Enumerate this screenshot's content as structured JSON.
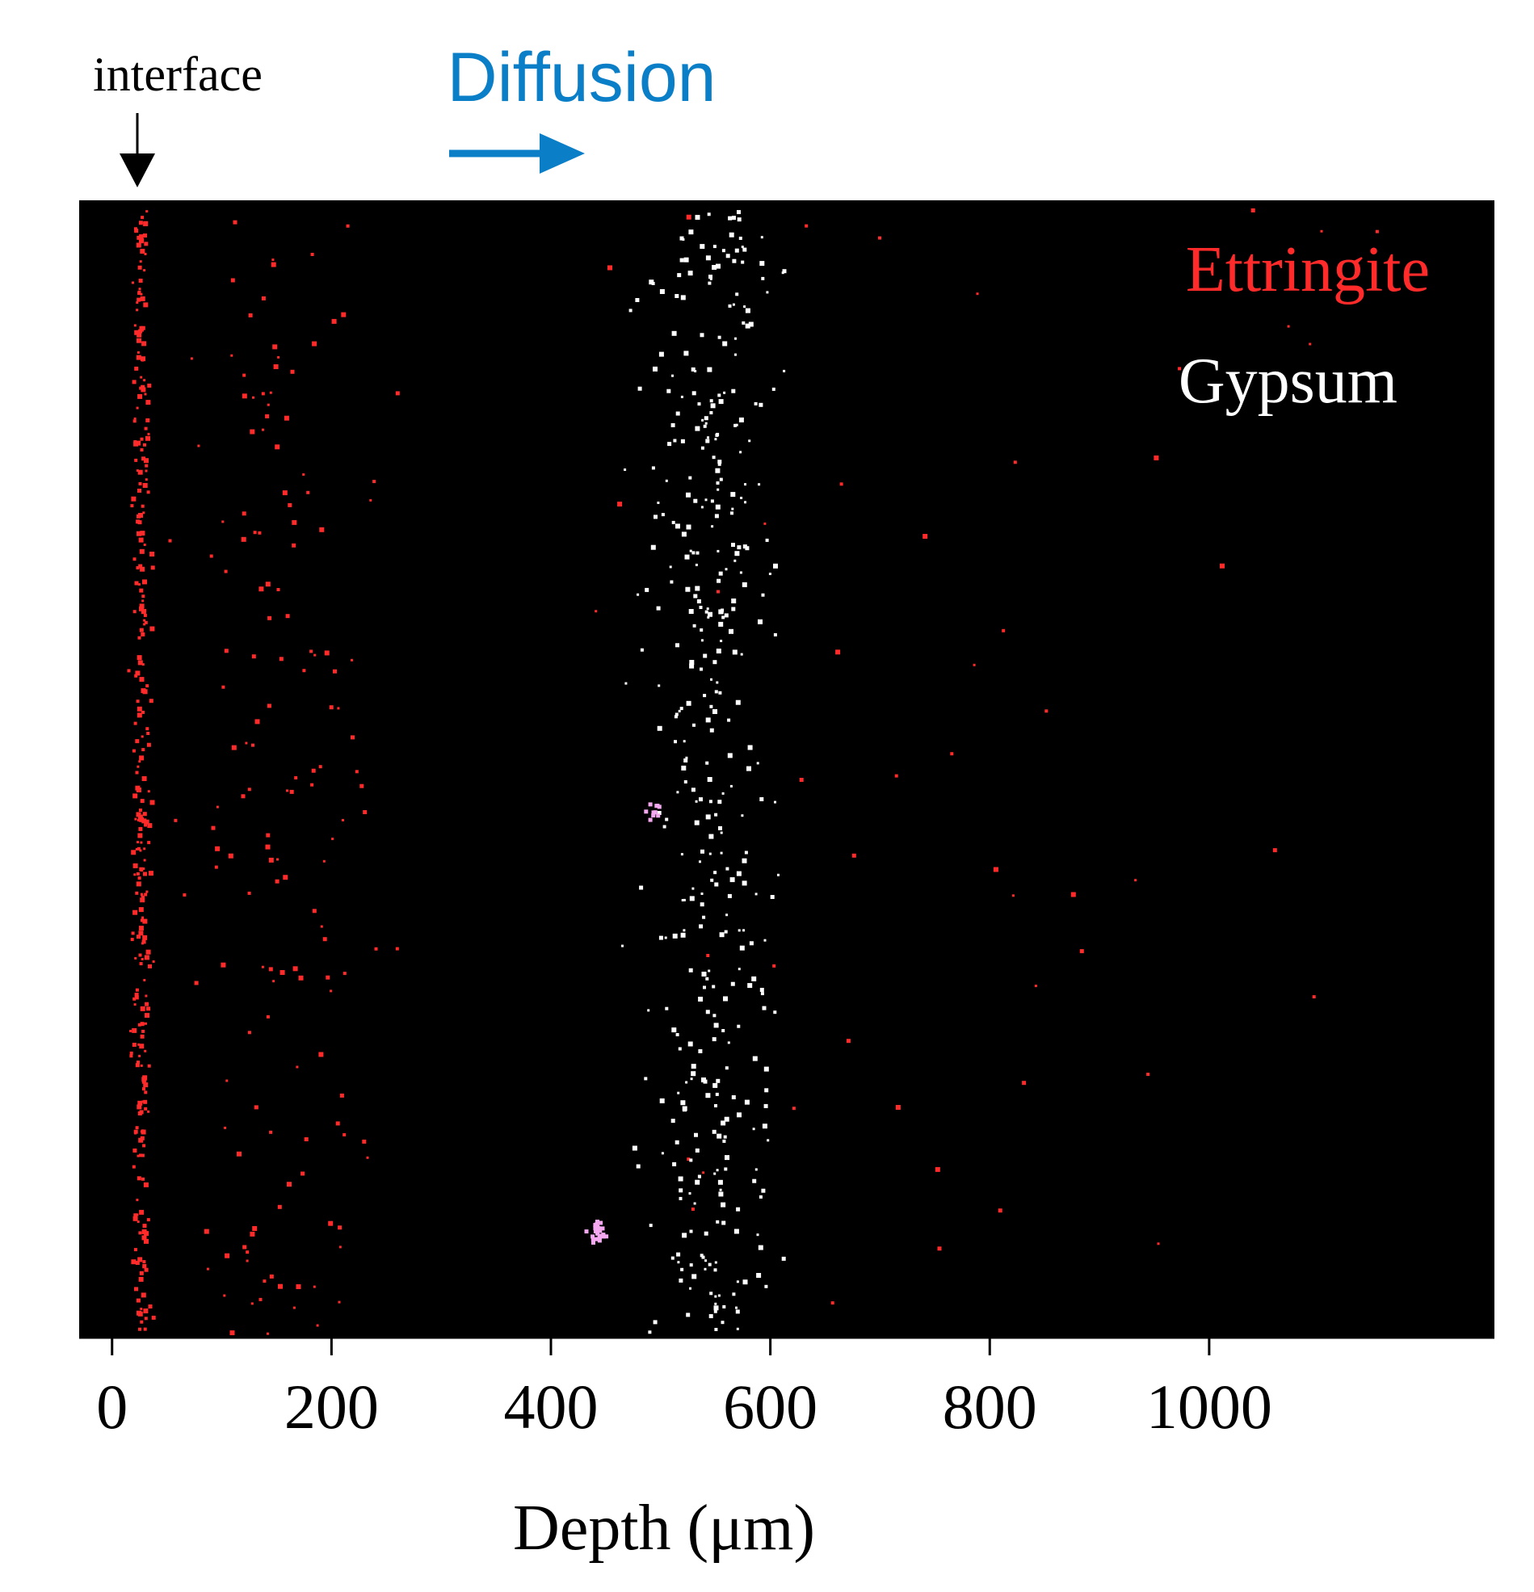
{
  "annotations": {
    "interface_label": "interface",
    "diffusion_label": "Diffusion"
  },
  "colors": {
    "ettringite": "#ff2a2a",
    "gypsum": "#ffffff",
    "overlap": "#f4a8f0",
    "diffusion": "#0a7fc8",
    "background": "#000000"
  },
  "chart_data": {
    "type": "scatter",
    "title": "",
    "xlabel": "Depth (μm)",
    "ylabel": "",
    "xlim": [
      -30,
      1260
    ],
    "x_ticks": [
      0,
      200,
      400,
      600,
      800,
      1000
    ],
    "x_tick_labels": [
      "0",
      "200",
      "400",
      "600",
      "800",
      "1000"
    ],
    "ylim": [
      0,
      1
    ],
    "grid": false,
    "legend": {
      "position": "top-right"
    },
    "series": [
      {
        "name": "Ettringite",
        "color": "#ff2a2a",
        "distribution": [
          {
            "x_center": 25,
            "x_spread": 12,
            "fraction": 0.6
          },
          {
            "x_center": 150,
            "x_spread": 120,
            "fraction": 0.3
          },
          {
            "x_center": 800,
            "x_spread": 420,
            "fraction": 0.1
          }
        ]
      },
      {
        "name": "Gypsum",
        "color": "#ffffff",
        "distribution": [
          {
            "x_center": 545,
            "x_spread": 85,
            "fraction": 1.0
          }
        ]
      }
    ]
  }
}
